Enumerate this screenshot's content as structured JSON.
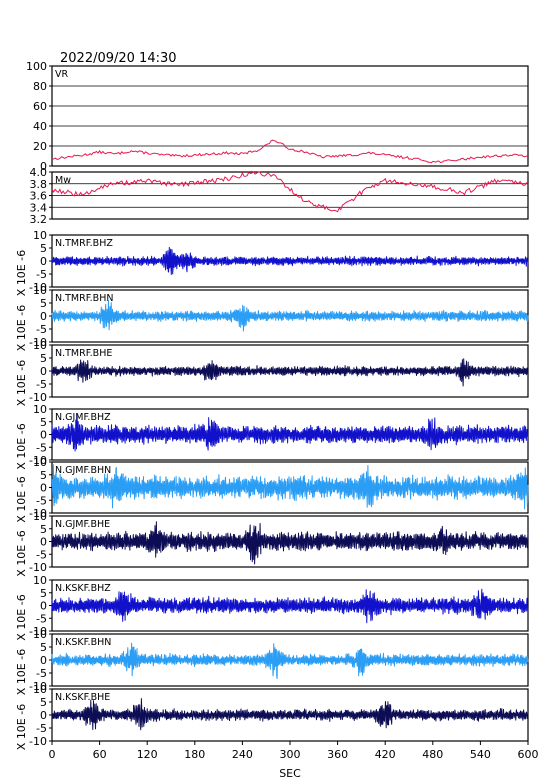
{
  "header": {
    "datetime": "2022/09/20  14:30"
  },
  "x_axis": {
    "label": "SEC",
    "range": [
      0,
      600
    ],
    "ticks": [
      "0",
      "60",
      "120",
      "180",
      "240",
      "300",
      "360",
      "420",
      "480",
      "540",
      "600"
    ]
  },
  "colors": {
    "vr": "#e8194f",
    "mw": "#e8194f",
    "bhz": "#1111cc",
    "bhn": "#2a9df4",
    "bhe": "#0d0d55",
    "grid": "#000000"
  },
  "chart_data": {
    "type": "line",
    "xlabel": "SEC",
    "xlim": [
      0,
      600
    ],
    "grid": true,
    "panels": [
      {
        "label": "VR",
        "ylim": [
          0,
          100
        ],
        "yticks": [
          "0",
          "20",
          "40",
          "60",
          "80",
          "100"
        ],
        "x": [
          0,
          20,
          40,
          60,
          80,
          100,
          120,
          140,
          160,
          180,
          200,
          220,
          240,
          260,
          280,
          300,
          320,
          340,
          360,
          380,
          400,
          420,
          440,
          460,
          480,
          500,
          520,
          540,
          560,
          580,
          600
        ],
        "values": [
          7,
          9,
          11,
          14,
          12,
          15,
          13,
          11,
          10,
          11,
          12,
          13,
          12,
          16,
          26,
          17,
          14,
          9,
          10,
          11,
          13,
          11,
          9,
          7,
          4,
          5,
          7,
          9,
          10,
          11,
          10
        ]
      },
      {
        "label": "Mw",
        "ylim": [
          3.2,
          4.0
        ],
        "yticks": [
          "3.2",
          "3.4",
          "3.6",
          "3.8",
          "4.0"
        ],
        "x": [
          0,
          20,
          40,
          60,
          80,
          100,
          120,
          140,
          160,
          180,
          200,
          220,
          240,
          260,
          280,
          300,
          320,
          340,
          360,
          380,
          400,
          420,
          440,
          460,
          480,
          500,
          520,
          540,
          560,
          580,
          600
        ],
        "values": [
          3.7,
          3.65,
          3.6,
          3.75,
          3.8,
          3.82,
          3.85,
          3.8,
          3.78,
          3.82,
          3.85,
          3.88,
          3.95,
          3.98,
          3.95,
          3.7,
          3.5,
          3.4,
          3.35,
          3.55,
          3.75,
          3.85,
          3.82,
          3.8,
          3.75,
          3.7,
          3.65,
          3.75,
          3.85,
          3.82,
          3.8
        ]
      },
      {
        "label": "N.TMRF.BHZ",
        "channel": "BHZ",
        "unit": "X 10E -6",
        "ylim": [
          -10,
          10
        ],
        "yticks": [
          "10",
          "5",
          "0",
          "-5",
          "-10"
        ],
        "rms": 1.2,
        "peaks": [
          [
            150,
            3.5
          ],
          [
            170,
            2
          ]
        ]
      },
      {
        "label": "N.TMRF.BHN",
        "channel": "BHN",
        "unit": "X 10E -6",
        "ylim": [
          -10,
          10
        ],
        "yticks": [
          "10",
          "5",
          "0",
          "-5",
          "-10"
        ],
        "rms": 1.4,
        "peaks": [
          [
            70,
            3
          ],
          [
            240,
            2.5
          ]
        ]
      },
      {
        "label": "N.TMRF.BHE",
        "channel": "BHE",
        "unit": "X 10E -6",
        "ylim": [
          -10,
          10
        ],
        "yticks": [
          "10",
          "5",
          "0",
          "-5",
          "-10"
        ],
        "rms": 1.3,
        "peaks": [
          [
            40,
            2.5
          ],
          [
            200,
            2.5
          ],
          [
            520,
            2.5
          ]
        ]
      },
      {
        "label": "N.GJMF.BHZ",
        "channel": "BHZ",
        "unit": "X 10E -6",
        "ylim": [
          -10,
          10
        ],
        "yticks": [
          "10",
          "5",
          "0",
          "-5",
          "-10"
        ],
        "rms": 2.5,
        "peaks": [
          [
            30,
            3
          ],
          [
            200,
            3
          ],
          [
            480,
            3
          ]
        ]
      },
      {
        "label": "N.GJMF.BHN",
        "channel": "BHN",
        "unit": "X 10E -6",
        "ylim": [
          -10,
          10
        ],
        "yticks": [
          "10",
          "5",
          "0",
          "-5",
          "-10"
        ],
        "rms": 3.2,
        "peaks": [
          [
            0,
            4
          ],
          [
            80,
            3
          ],
          [
            400,
            3.5
          ],
          [
            595,
            4
          ]
        ]
      },
      {
        "label": "N.GJMF.BHE",
        "channel": "BHE",
        "unit": "X 10E -6",
        "ylim": [
          -10,
          10
        ],
        "yticks": [
          "10",
          "5",
          "0",
          "-5",
          "-10"
        ],
        "rms": 2.6,
        "peaks": [
          [
            130,
            3
          ],
          [
            255,
            5
          ],
          [
            490,
            3
          ]
        ]
      },
      {
        "label": "N.KSKF.BHZ",
        "channel": "BHZ",
        "unit": "X 10E -6",
        "ylim": [
          -10,
          10
        ],
        "yticks": [
          "10",
          "5",
          "0",
          "-5",
          "-10"
        ],
        "rms": 2.2,
        "peaks": [
          [
            90,
            3
          ],
          [
            400,
            3
          ],
          [
            540,
            3
          ]
        ]
      },
      {
        "label": "N.KSKF.BHN",
        "channel": "BHN",
        "unit": "X 10E -6",
        "ylim": [
          -10,
          10
        ],
        "yticks": [
          "10",
          "5",
          "0",
          "-5",
          "-10"
        ],
        "rms": 1.6,
        "peaks": [
          [
            100,
            3
          ],
          [
            280,
            4
          ],
          [
            390,
            3
          ]
        ]
      },
      {
        "label": "N.KSKF.BHE",
        "channel": "BHE",
        "unit": "X 10E -6",
        "ylim": [
          -10,
          10
        ],
        "yticks": [
          "10",
          "5",
          "0",
          "-5",
          "-10"
        ],
        "rms": 1.5,
        "peaks": [
          [
            50,
            3
          ],
          [
            110,
            3
          ],
          [
            420,
            3
          ]
        ]
      }
    ]
  }
}
